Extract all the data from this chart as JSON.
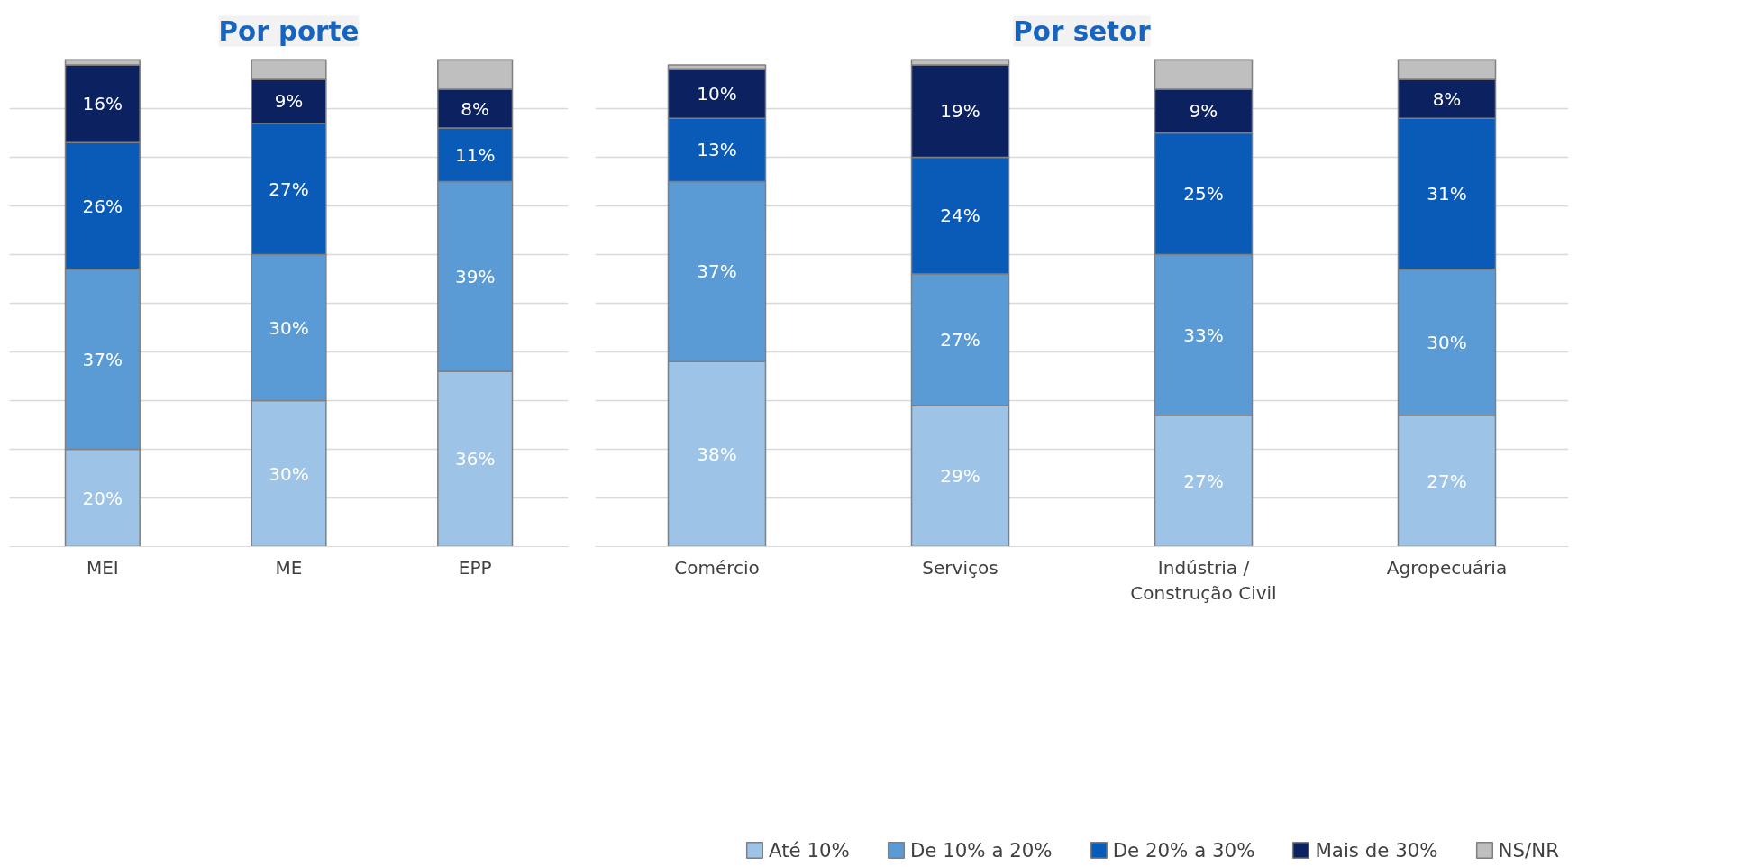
{
  "chart_data": [
    {
      "type": "bar",
      "title": "Por porte",
      "stacked": true,
      "categories": [
        "MEI",
        "ME",
        "EPP"
      ],
      "ylim": [
        0,
        100
      ],
      "yticks": [
        {
          "value": 0,
          "label": null
        },
        {
          "value": 10,
          "label": null
        },
        {
          "value": 20,
          "label": null
        },
        {
          "value": 30,
          "label": null
        },
        {
          "value": 40,
          "label": null
        },
        {
          "value": 50,
          "label": null
        },
        {
          "value": 60,
          "label": null
        },
        {
          "value": 70,
          "label": null
        },
        {
          "value": 80,
          "label": null
        },
        {
          "value": 90,
          "label": null
        }
      ],
      "tick_labels": "x",
      "grid": "y",
      "legend": false,
      "series": [
        {
          "color": "#9dc3e6",
          "values": [
            20,
            30,
            36
          ],
          "value_labels": [
            "20%",
            "30%",
            "36%"
          ]
        },
        {
          "color": "#5b9bd5",
          "values": [
            37,
            30,
            39
          ],
          "value_labels": [
            "37%",
            "30%",
            "39%"
          ]
        },
        {
          "color": "#0a5bb8",
          "values": [
            26,
            27,
            11
          ],
          "value_labels": [
            "26%",
            "27%",
            "11%"
          ]
        },
        {
          "color": "#0b2160",
          "values": [
            16,
            9,
            8
          ],
          "value_labels": [
            "16%",
            "9%",
            "8%"
          ]
        },
        {
          "color": "#bfbfbf",
          "values": [
            1,
            4,
            6
          ],
          "value_labels": [
            null,
            null,
            null
          ]
        }
      ]
    },
    {
      "type": "bar",
      "title": "Por setor",
      "stacked": true,
      "categories": [
        "Comércio",
        "Serviços",
        "Indústria /\nConstrução Civil",
        "Agropecuária"
      ],
      "ylim": [
        0,
        100
      ],
      "yticks": [
        {
          "value": 0,
          "label": null
        },
        {
          "value": 10,
          "label": null
        },
        {
          "value": 20,
          "label": null
        },
        {
          "value": 30,
          "label": null
        },
        {
          "value": 40,
          "label": null
        },
        {
          "value": 50,
          "label": null
        },
        {
          "value": 60,
          "label": null
        },
        {
          "value": 70,
          "label": null
        },
        {
          "value": 80,
          "label": null
        },
        {
          "value": 90,
          "label": null
        }
      ],
      "tick_labels": "x",
      "grid": "y",
      "legend": "bottom",
      "series": [
        {
          "name": "Até 10%",
          "color": "#9dc3e6",
          "values": [
            38,
            29,
            27,
            27
          ],
          "value_labels": [
            "38%",
            "29%",
            "27%",
            "27%"
          ]
        },
        {
          "name": "De 10% a 20%",
          "color": "#5b9bd5",
          "values": [
            37,
            27,
            33,
            30
          ],
          "value_labels": [
            "37%",
            "27%",
            "33%",
            "30%"
          ]
        },
        {
          "name": "De 20% a 30%",
          "color": "#0a5bb8",
          "values": [
            13,
            24,
            25,
            31
          ],
          "value_labels": [
            "13%",
            "24%",
            "25%",
            "31%"
          ]
        },
        {
          "name": "Mais de 30%",
          "color": "#0b2160",
          "values": [
            10,
            19,
            9,
            8
          ],
          "value_labels": [
            "10%",
            "19%",
            "9%",
            "8%"
          ]
        },
        {
          "name": "NS/NR",
          "color": "#bfbfbf",
          "values": [
            1,
            1,
            6,
            4
          ],
          "value_labels": [
            null,
            null,
            null,
            null
          ]
        }
      ]
    }
  ]
}
